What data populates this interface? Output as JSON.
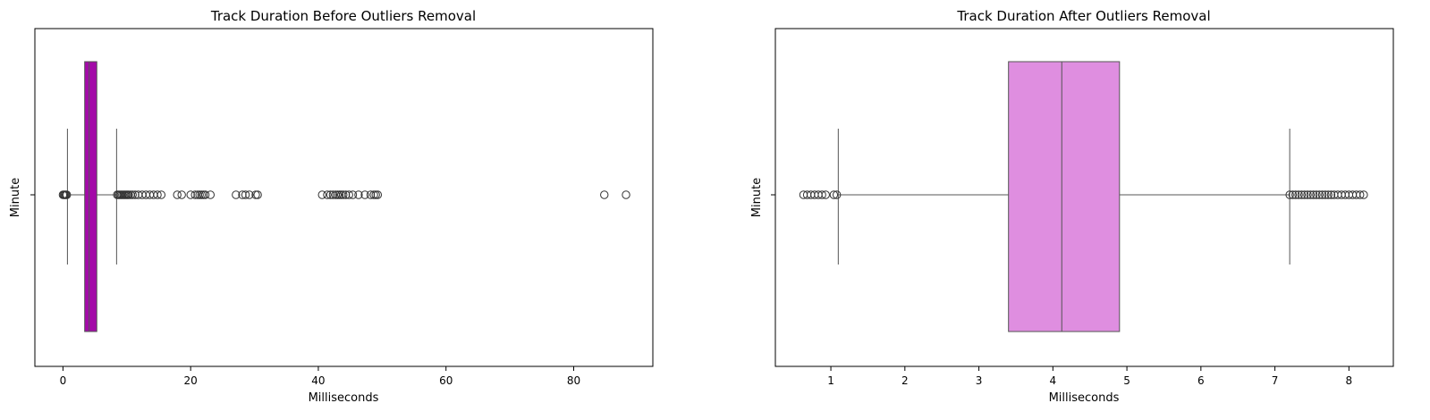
{
  "chart_data": [
    {
      "type": "boxplot",
      "title": "Track Duration Before Outliers Removal",
      "xlabel": "Milliseconds",
      "ylabel": "",
      "ytick": "Minute",
      "xlim": [
        -4.4,
        92.4
      ],
      "xticks": [
        0,
        20,
        40,
        60,
        80
      ],
      "box": {
        "q1": 3.4,
        "median": 4.1,
        "q3": 5.3,
        "whisker_low": 0.7,
        "whisker_high": 8.4,
        "color": "#a30aa8"
      },
      "outliers": [
        0.0,
        0.15,
        0.3,
        0.45,
        0.6,
        8.5,
        8.7,
        8.9,
        9.1,
        9.3,
        9.5,
        9.7,
        9.9,
        10.1,
        10.3,
        10.6,
        10.9,
        11.3,
        11.8,
        12.4,
        13.0,
        13.6,
        14.2,
        14.8,
        15.4,
        17.9,
        18.6,
        20.0,
        20.7,
        21.1,
        21.4,
        21.7,
        22.0,
        22.3,
        23.1,
        27.1,
        28.1,
        28.6,
        29.2,
        30.2,
        30.5,
        40.6,
        41.4,
        41.9,
        42.3,
        42.7,
        43.0,
        43.3,
        43.6,
        43.9,
        44.3,
        44.8,
        45.4,
        46.3,
        47.3,
        48.2,
        48.7,
        49.0,
        49.3,
        84.8,
        88.2
      ]
    },
    {
      "type": "boxplot",
      "title": "Track Duration After Outliers Removal",
      "xlabel": "Milliseconds",
      "ylabel": "",
      "ytick": "Minute",
      "xlim": [
        0.25,
        8.6
      ],
      "xticks": [
        1,
        2,
        3,
        4,
        5,
        6,
        7,
        8
      ],
      "box": {
        "q1": 3.4,
        "median": 4.12,
        "q3": 4.9,
        "whisker_low": 1.1,
        "whisker_high": 7.2,
        "color": "#df8ee0"
      },
      "outliers": [
        0.63,
        0.68,
        0.73,
        0.78,
        0.83,
        0.88,
        0.93,
        1.04,
        1.08,
        7.2,
        7.24,
        7.28,
        7.32,
        7.36,
        7.4,
        7.44,
        7.48,
        7.52,
        7.56,
        7.6,
        7.64,
        7.68,
        7.72,
        7.76,
        7.8,
        7.85,
        7.9,
        7.95,
        8.0,
        8.05,
        8.1,
        8.15,
        8.2
      ]
    }
  ]
}
